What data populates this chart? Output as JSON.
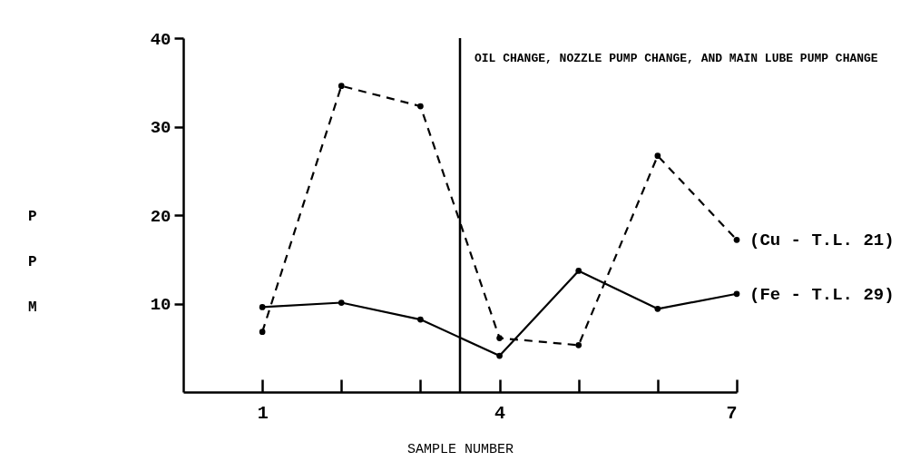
{
  "chart_data": {
    "type": "line",
    "xlabel": "SAMPLE NUMBER",
    "ylabel": "PPM",
    "x": [
      1,
      2,
      3,
      4,
      5,
      6,
      7
    ],
    "xlim": [
      0,
      7
    ],
    "xticks": [
      1,
      {
        "value": 2,
        "label": null
      },
      {
        "value": 3,
        "label": null
      },
      4,
      {
        "value": 5,
        "label": null
      },
      {
        "value": 6,
        "label": null
      },
      7
    ],
    "ylim": [
      0,
      40
    ],
    "yticks": [
      10,
      20,
      30,
      40
    ],
    "grid": false,
    "legend": false,
    "marker": "circle",
    "series": [
      {
        "name": "(Cu - T.L. 21)",
        "color": "#000000",
        "line_style": "dashed",
        "values": [
          6.8,
          34.6,
          32.3,
          6.1,
          5.3,
          26.7,
          17.2
        ]
      },
      {
        "name": "(Fe - T.L. 29)",
        "color": "#000000",
        "line_style": "solid",
        "values": [
          9.6,
          10.1,
          8.2,
          4.1,
          13.7,
          9.4,
          11.1
        ]
      }
    ],
    "ref_lines": [
      {
        "axis": "x",
        "value": 3.5,
        "label": "OIL CHANGE, NOZZLE PUMP CHANGE, AND MAIN LUBE PUMP CHANGE",
        "color": "#000000"
      }
    ]
  }
}
